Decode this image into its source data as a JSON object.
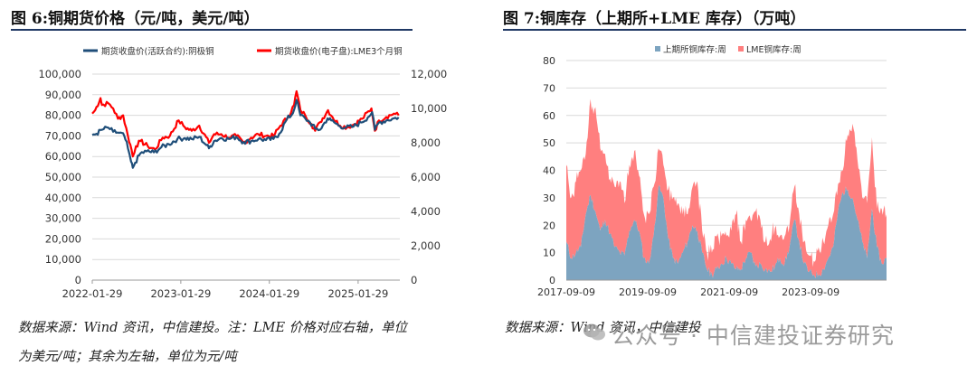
{
  "chart_data": [
    {
      "id": "chart1",
      "type": "line",
      "title": "图 6:铜期货价格（元/吨，美元/吨）",
      "source_note_lines": [
        "数据来源：Wind 资讯，中信建投。注：LME 价格对应右轴，单位",
        "为美元/吨；其余为左轴，单位为元/吨"
      ],
      "x_ticks": [
        "2022-01-29",
        "2023-01-29",
        "2024-01-29",
        "2025-01-29"
      ],
      "y_left_ticks": [
        "0",
        "10,000",
        "20,000",
        "30,000",
        "40,000",
        "50,000",
        "60,000",
        "70,000",
        "80,000",
        "90,000",
        "100,000"
      ],
      "y_right_ticks": [
        "0",
        "2,000",
        "4,000",
        "6,000",
        "8,000",
        "10,000",
        "12,000"
      ],
      "ylim_left": [
        0,
        100000
      ],
      "ylim_right": [
        0,
        12000
      ],
      "grid": true,
      "legend_position": "top",
      "colors": {
        "shfe": "#1f4e79",
        "lme": "#ff0000"
      },
      "series": [
        {
          "name": "期货收盘价(活跃合约):阴极铜",
          "axis": "left",
          "points": [
            [
              "2022-01-29",
              70500
            ],
            [
              "2022-02-15",
              71000
            ],
            [
              "2022-03-10",
              73000
            ],
            [
              "2022-04-05",
              74000
            ],
            [
              "2022-04-25",
              72000
            ],
            [
              "2022-05-20",
              71500
            ],
            [
              "2022-06-10",
              70000
            ],
            [
              "2022-06-25",
              64000
            ],
            [
              "2022-07-08",
              57500
            ],
            [
              "2022-07-15",
              54500
            ],
            [
              "2022-07-25",
              57000
            ],
            [
              "2022-08-15",
              61500
            ],
            [
              "2022-09-10",
              62500
            ],
            [
              "2022-10-10",
              62000
            ],
            [
              "2022-11-10",
              64500
            ],
            [
              "2022-12-10",
              66000
            ],
            [
              "2023-01-15",
              68500
            ],
            [
              "2023-02-15",
              69000
            ],
            [
              "2023-03-15",
              68500
            ],
            [
              "2023-04-15",
              69500
            ],
            [
              "2023-05-15",
              65500
            ],
            [
              "2023-05-25",
              64000
            ],
            [
              "2023-06-15",
              67500
            ],
            [
              "2023-07-15",
              69000
            ],
            [
              "2023-08-15",
              68500
            ],
            [
              "2023-09-15",
              69500
            ],
            [
              "2023-10-15",
              67000
            ],
            [
              "2023-11-15",
              67500
            ],
            [
              "2023-12-15",
              68500
            ],
            [
              "2024-01-15",
              68000
            ],
            [
              "2024-02-15",
              68500
            ],
            [
              "2024-03-10",
              71000
            ],
            [
              "2024-04-10",
              78000
            ],
            [
              "2024-05-05",
              81000
            ],
            [
              "2024-05-20",
              87500
            ],
            [
              "2024-06-05",
              80000
            ],
            [
              "2024-06-25",
              78500
            ],
            [
              "2024-07-15",
              76500
            ],
            [
              "2024-08-05",
              73500
            ],
            [
              "2024-08-25",
              73000
            ],
            [
              "2024-09-25",
              78500
            ],
            [
              "2024-10-10",
              77500
            ],
            [
              "2024-11-10",
              75000
            ],
            [
              "2024-12-10",
              74000
            ],
            [
              "2025-01-10",
              74500
            ],
            [
              "2025-02-10",
              76500
            ],
            [
              "2025-03-10",
              79000
            ],
            [
              "2025-03-28",
              81500
            ],
            [
              "2025-04-08",
              73000
            ],
            [
              "2025-04-25",
              76500
            ],
            [
              "2025-05-25",
              77500
            ],
            [
              "2025-06-25",
              78500
            ],
            [
              "2025-07-15",
              79000
            ]
          ]
        },
        {
          "name": "期货收盘价(电子盘):LME3个月铜",
          "axis": "right",
          "points": [
            [
              "2022-01-29",
              9700
            ],
            [
              "2022-02-10",
              9900
            ],
            [
              "2022-03-04",
              10600
            ],
            [
              "2022-03-10",
              10200
            ],
            [
              "2022-04-05",
              10300
            ],
            [
              "2022-04-25",
              10000
            ],
            [
              "2022-05-15",
              9400
            ],
            [
              "2022-06-05",
              9600
            ],
            [
              "2022-06-25",
              8400
            ],
            [
              "2022-07-10",
              7600
            ],
            [
              "2022-07-15",
              7200
            ],
            [
              "2022-07-28",
              7800
            ],
            [
              "2022-08-15",
              8100
            ],
            [
              "2022-09-15",
              7800
            ],
            [
              "2022-10-15",
              7600
            ],
            [
              "2022-11-15",
              8300
            ],
            [
              "2022-12-15",
              8400
            ],
            [
              "2023-01-20",
              9300
            ],
            [
              "2023-02-15",
              8900
            ],
            [
              "2023-03-15",
              8700
            ],
            [
              "2023-04-15",
              9000
            ],
            [
              "2023-05-25",
              8000
            ],
            [
              "2023-06-15",
              8500
            ],
            [
              "2023-07-15",
              8500
            ],
            [
              "2023-08-15",
              8300
            ],
            [
              "2023-09-15",
              8400
            ],
            [
              "2023-10-15",
              8000
            ],
            [
              "2023-11-15",
              8300
            ],
            [
              "2023-12-15",
              8500
            ],
            [
              "2024-01-15",
              8400
            ],
            [
              "2024-02-15",
              8400
            ],
            [
              "2024-03-15",
              9000
            ],
            [
              "2024-04-15",
              9500
            ],
            [
              "2024-05-10",
              10200
            ],
            [
              "2024-05-20",
              11000
            ],
            [
              "2024-06-05",
              9900
            ],
            [
              "2024-06-25",
              9600
            ],
            [
              "2024-07-20",
              9100
            ],
            [
              "2024-08-05",
              8700
            ],
            [
              "2024-08-25",
              9200
            ],
            [
              "2024-09-27",
              9900
            ],
            [
              "2024-10-15",
              9500
            ],
            [
              "2024-11-15",
              9000
            ],
            [
              "2024-12-15",
              8900
            ],
            [
              "2025-01-15",
              9100
            ],
            [
              "2025-02-15",
              9400
            ],
            [
              "2025-03-25",
              10000
            ],
            [
              "2025-04-08",
              8700
            ],
            [
              "2025-04-25",
              9300
            ],
            [
              "2025-05-25",
              9500
            ],
            [
              "2025-06-25",
              9700
            ],
            [
              "2025-07-15",
              9600
            ]
          ]
        }
      ]
    },
    {
      "id": "chart2",
      "type": "area",
      "stacked": true,
      "title": "图 7:铜库存（上期所+LME 库存）（万吨）",
      "source_note_lines": [
        "数据来源：Wind 资讯，中信建投"
      ],
      "x_ticks": [
        "2017-09-09",
        "2019-09-09",
        "2021-09-09",
        "2023-09-09"
      ],
      "y_ticks": [
        "0",
        "10",
        "20",
        "30",
        "40",
        "50",
        "60",
        "70",
        "80"
      ],
      "ylim": [
        0,
        80
      ],
      "grid": true,
      "legend_position": "top",
      "colors": {
        "shfe": "#7da4c0",
        "lme": "#ff7f7f"
      },
      "series": [
        {
          "name": "上期所铜库存:周",
          "values": [
            14,
            8,
            10,
            12,
            24,
            31,
            25,
            18,
            22,
            17,
            12,
            10,
            9,
            18,
            22,
            18,
            8,
            6,
            16,
            34,
            30,
            15,
            8,
            6,
            10,
            14,
            20,
            18,
            10,
            4,
            2,
            4,
            6,
            8,
            6,
            4,
            4,
            8,
            10,
            5,
            6,
            4,
            3,
            5,
            8,
            6,
            12,
            22,
            14,
            6,
            3,
            2,
            2,
            4,
            8,
            12,
            25,
            32,
            33,
            30,
            22,
            14,
            8,
            26,
            12,
            6,
            8
          ]
        },
        {
          "name": "LME铜库存:周",
          "values": [
            28,
            22,
            26,
            28,
            22,
            35,
            38,
            30,
            24,
            20,
            22,
            26,
            19,
            24,
            25,
            20,
            16,
            18,
            18,
            14,
            12,
            18,
            22,
            22,
            14,
            10,
            14,
            18,
            8,
            6,
            8,
            12,
            10,
            8,
            12,
            20,
            10,
            14,
            12,
            20,
            16,
            10,
            12,
            14,
            8,
            10,
            8,
            12,
            10,
            8,
            6,
            5,
            10,
            10,
            12,
            12,
            10,
            8,
            20,
            27,
            22,
            16,
            20,
            26,
            14,
            20,
            16
          ]
        }
      ]
    }
  ],
  "watermark": "公众号 · 中信建投证券研究"
}
